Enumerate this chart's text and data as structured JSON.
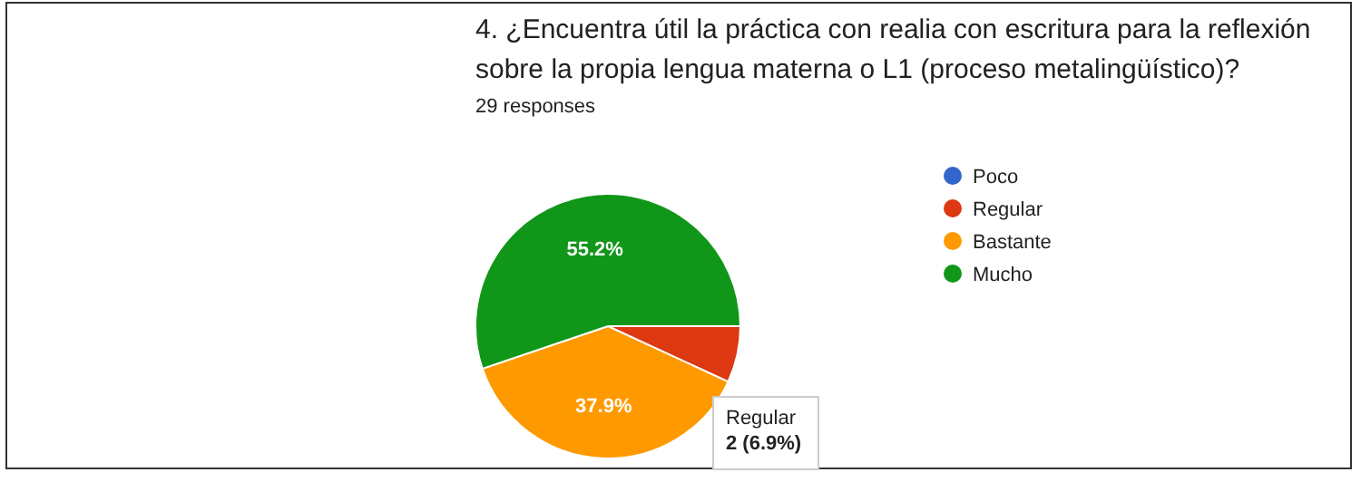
{
  "chart_data": {
    "type": "pie",
    "title": "4. ¿Encuentra útil la práctica con realia con escritura para la reflexión sobre la propia lengua materna o L1 (proceso metalingüístico)?",
    "subtitle": "29 responses",
    "categories": [
      "Poco",
      "Regular",
      "Bastante",
      "Mucho"
    ],
    "values": [
      0,
      6.9,
      37.9,
      55.2
    ],
    "colors": [
      "#3366cc",
      "#dc3912",
      "#ff9900",
      "#109618"
    ],
    "value_labels": [
      null,
      null,
      "37.9%",
      "55.2%"
    ],
    "annotations": [
      "Regular\n2 (6.9%)"
    ],
    "legend": "right"
  }
}
